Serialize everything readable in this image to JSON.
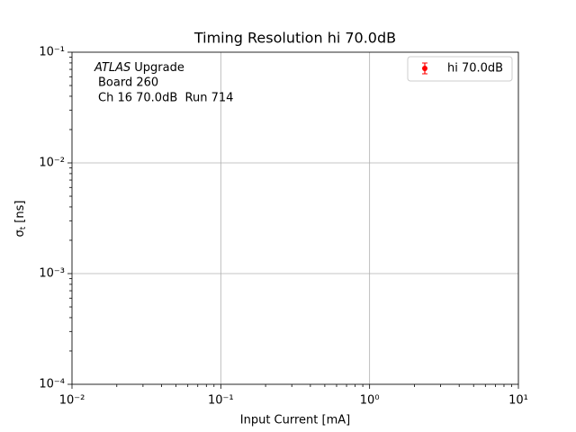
{
  "chart_data": {
    "type": "errorbar",
    "title": "Timing Resolution hi 70.0dB",
    "xlabel": "Input Current [mA]",
    "ylabel": {
      "symbol": "σ",
      "subscript": "t",
      "unit": "[ns]"
    },
    "annotation": {
      "experiment": "ATLAS",
      "text": [
        "Upgrade",
        "Board 260",
        "Ch 16 70.0dB  Run 714"
      ]
    },
    "series": [
      {
        "name": "hi 70.0dB",
        "color": "#ff0000",
        "x": [],
        "values": []
      }
    ],
    "xscale": "log",
    "yscale": "log",
    "xlim": [
      0.01,
      10
    ],
    "ylim": [
      0.0001,
      0.1
    ],
    "xticks": [
      {
        "value": 0.01,
        "label": "10⁻²"
      },
      {
        "value": 0.1,
        "label": "10⁻¹"
      },
      {
        "value": 1,
        "label": "10⁰"
      },
      {
        "value": 10,
        "label": "10¹"
      }
    ],
    "yticks": [
      {
        "value": 0.0001,
        "label": "10⁻⁴"
      },
      {
        "value": 0.001,
        "label": "10⁻³"
      },
      {
        "value": 0.01,
        "label": "10⁻²"
      },
      {
        "value": 0.1,
        "label": "10⁻¹"
      }
    ],
    "grid": true,
    "minor_ticks": true,
    "legend": "upper right"
  }
}
